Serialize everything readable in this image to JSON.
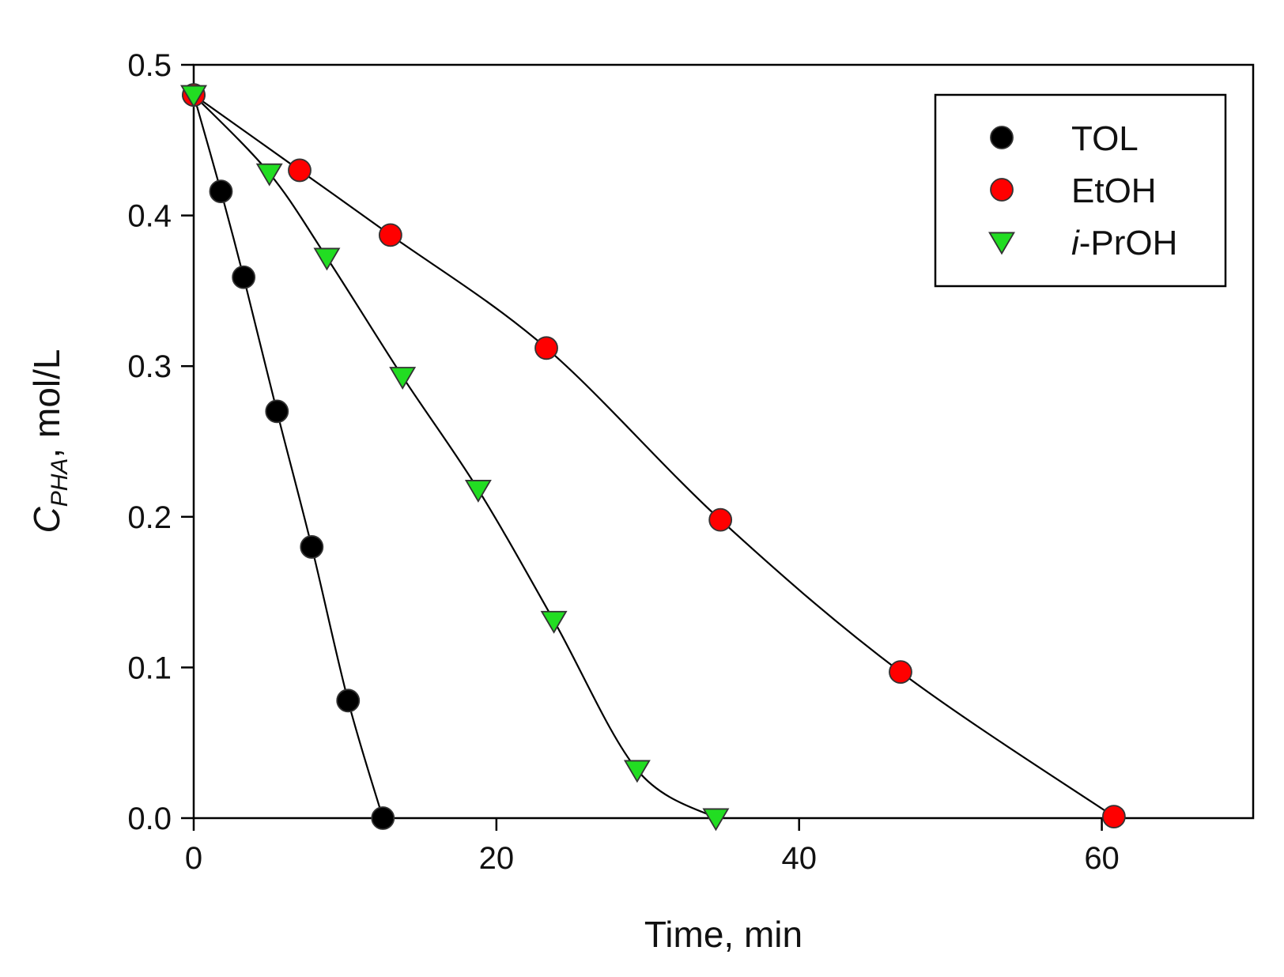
{
  "chart_data": {
    "type": "scatter",
    "title": "",
    "xlabel": "Time, min",
    "ylabel": {
      "main": "C",
      "subscript": "PHA",
      "suffix": ", mol/L"
    },
    "xlim": [
      0,
      70
    ],
    "ylim": [
      0,
      0.5
    ],
    "xticks": [
      0,
      20,
      40,
      60
    ],
    "yticks": [
      0.0,
      0.1,
      0.2,
      0.3,
      0.4,
      0.5
    ],
    "xtick_labels": [
      "0",
      "20",
      "40",
      "60"
    ],
    "ytick_labels": [
      "0.0",
      "0.1",
      "0.2",
      "0.3",
      "0.4",
      "0.5"
    ],
    "grid": false,
    "legend_position": "top-right",
    "series": [
      {
        "name": "TOL",
        "marker": "circle",
        "color": "#000000",
        "x": [
          0,
          1.8,
          3.3,
          5.5,
          7.8,
          10.2,
          12.5
        ],
        "y": [
          0.48,
          0.416,
          0.359,
          0.27,
          0.18,
          0.078,
          0.0
        ]
      },
      {
        "name": "EtOH",
        "marker": "circle",
        "color": "#ff0000",
        "x": [
          0,
          7,
          13,
          23.3,
          34.8,
          46.7,
          60.8
        ],
        "y": [
          0.48,
          0.43,
          0.387,
          0.312,
          0.198,
          0.097,
          0.001
        ]
      },
      {
        "name": "i-PrOH",
        "name_parts": {
          "italic": "i",
          "rest": "-PrOH"
        },
        "marker": "triangle-down",
        "color": "#22dd22",
        "x": [
          0,
          5,
          8.8,
          13.8,
          18.8,
          23.8,
          29.3,
          34.5
        ],
        "y": [
          0.48,
          0.428,
          0.372,
          0.293,
          0.218,
          0.131,
          0.032,
          0.0
        ]
      }
    ]
  }
}
